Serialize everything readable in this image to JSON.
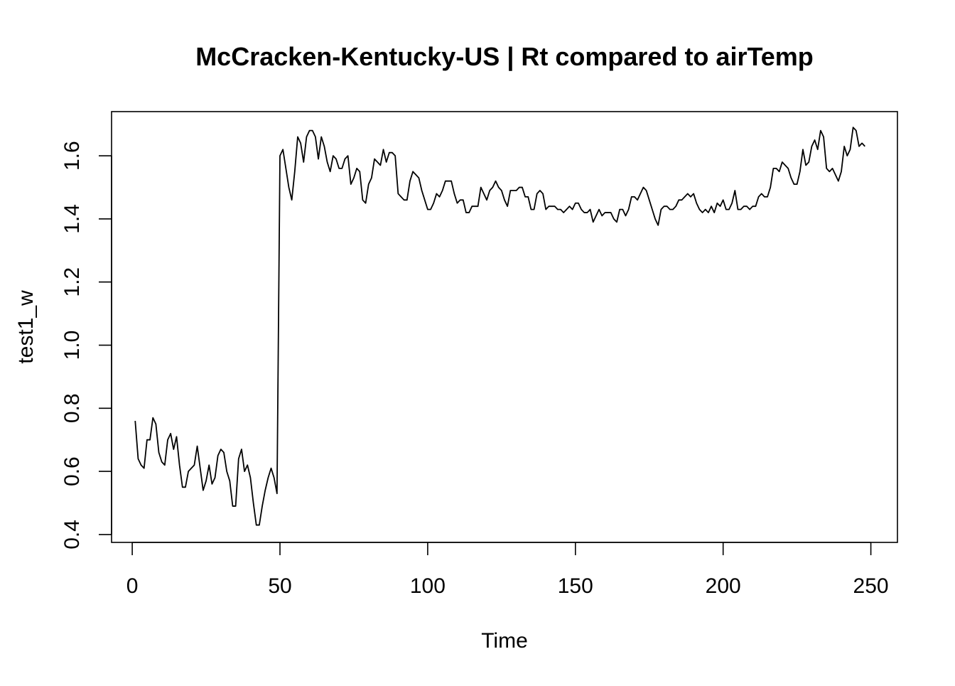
{
  "chart_data": {
    "type": "line",
    "title": "McCracken-Kentucky-US | Rt compared to airTemp",
    "xlabel": "Time",
    "ylabel": "test1_w",
    "xlim": [
      -7,
      259
    ],
    "ylim": [
      0.375,
      1.74
    ],
    "x_ticks": [
      0,
      50,
      100,
      150,
      200,
      250
    ],
    "y_ticks": [
      0.4,
      0.6,
      0.8,
      1.0,
      1.2,
      1.4,
      1.6
    ],
    "x_tick_labels": [
      "0",
      "50",
      "100",
      "150",
      "200",
      "250"
    ],
    "y_tick_labels": [
      "0.4",
      "0.6",
      "0.8",
      "1.0",
      "1.2",
      "1.4",
      "1.6"
    ],
    "grid": false,
    "legend": "none",
    "line_color": "#000000",
    "series": [
      {
        "x_start": 1,
        "values": [
          0.76,
          0.64,
          0.62,
          0.61,
          0.7,
          0.7,
          0.77,
          0.75,
          0.66,
          0.63,
          0.62,
          0.7,
          0.72,
          0.67,
          0.71,
          0.62,
          0.55,
          0.55,
          0.6,
          0.61,
          0.62,
          0.68,
          0.61,
          0.54,
          0.57,
          0.62,
          0.56,
          0.58,
          0.65,
          0.67,
          0.66,
          0.6,
          0.57,
          0.49,
          0.49,
          0.64,
          0.67,
          0.6,
          0.62,
          0.58,
          0.5,
          0.43,
          0.43,
          0.49,
          0.54,
          0.58,
          0.61,
          0.58,
          0.53,
          1.6,
          1.62,
          1.56,
          1.5,
          1.46,
          1.55,
          1.66,
          1.64,
          1.58,
          1.66,
          1.68,
          1.68,
          1.66,
          1.59,
          1.66,
          1.63,
          1.58,
          1.55,
          1.6,
          1.59,
          1.56,
          1.56,
          1.59,
          1.6,
          1.51,
          1.53,
          1.56,
          1.55,
          1.46,
          1.45,
          1.51,
          1.53,
          1.59,
          1.58,
          1.57,
          1.62,
          1.58,
          1.61,
          1.61,
          1.6,
          1.48,
          1.47,
          1.46,
          1.46,
          1.52,
          1.55,
          1.54,
          1.53,
          1.49,
          1.46,
          1.43,
          1.43,
          1.45,
          1.48,
          1.47,
          1.49,
          1.52,
          1.52,
          1.52,
          1.48,
          1.45,
          1.46,
          1.46,
          1.42,
          1.42,
          1.44,
          1.44,
          1.44,
          1.5,
          1.48,
          1.46,
          1.49,
          1.5,
          1.52,
          1.5,
          1.49,
          1.46,
          1.44,
          1.49,
          1.49,
          1.49,
          1.5,
          1.5,
          1.47,
          1.47,
          1.43,
          1.43,
          1.48,
          1.49,
          1.48,
          1.43,
          1.44,
          1.44,
          1.44,
          1.43,
          1.43,
          1.42,
          1.43,
          1.44,
          1.43,
          1.45,
          1.45,
          1.43,
          1.42,
          1.42,
          1.43,
          1.39,
          1.41,
          1.43,
          1.41,
          1.42,
          1.42,
          1.42,
          1.4,
          1.39,
          1.43,
          1.43,
          1.41,
          1.43,
          1.47,
          1.47,
          1.46,
          1.48,
          1.5,
          1.49,
          1.46,
          1.43,
          1.4,
          1.38,
          1.43,
          1.44,
          1.44,
          1.43,
          1.43,
          1.44,
          1.46,
          1.46,
          1.47,
          1.48,
          1.47,
          1.48,
          1.45,
          1.43,
          1.42,
          1.43,
          1.42,
          1.44,
          1.42,
          1.45,
          1.44,
          1.46,
          1.43,
          1.43,
          1.45,
          1.49,
          1.43,
          1.43,
          1.44,
          1.44,
          1.43,
          1.44,
          1.44,
          1.47,
          1.48,
          1.47,
          1.47,
          1.5,
          1.56,
          1.56,
          1.55,
          1.58,
          1.57,
          1.56,
          1.53,
          1.51,
          1.51,
          1.55,
          1.62,
          1.57,
          1.58,
          1.63,
          1.65,
          1.62,
          1.68,
          1.66,
          1.56,
          1.55,
          1.56,
          1.54,
          1.52,
          1.55,
          1.63,
          1.6,
          1.62,
          1.69,
          1.68,
          1.63,
          1.64,
          1.63
        ]
      }
    ]
  }
}
